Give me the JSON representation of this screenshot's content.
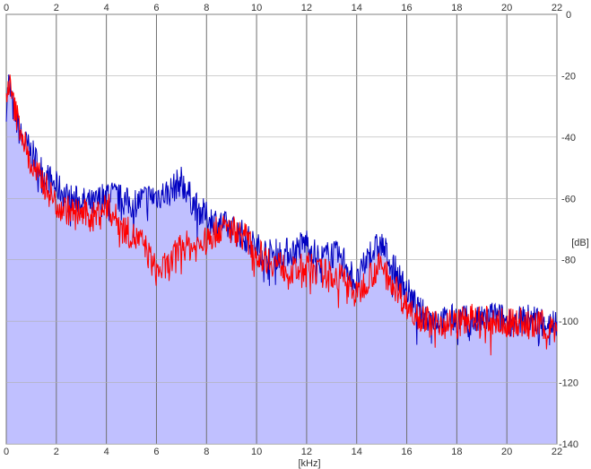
{
  "chart_data": {
    "type": "area",
    "xlabel": "[kHz]",
    "ylabel": "[dB]",
    "xlim": [
      0,
      22
    ],
    "ylim": [
      -140,
      0
    ],
    "x_ticks": [
      "0",
      "2",
      "4",
      "6",
      "8",
      "10",
      "12",
      "14",
      "16",
      "18",
      "20",
      "22"
    ],
    "y_ticks": [
      "0",
      "-20",
      "-40",
      "-60",
      "-80",
      "-100",
      "-120",
      "-140"
    ],
    "grid": true,
    "series": [
      {
        "color": "#0000c0",
        "x": [
          0,
          0.1,
          0.3,
          0.6,
          1,
          1.5,
          2,
          2.5,
          3,
          3.5,
          4,
          4.5,
          5,
          5.5,
          6,
          6.5,
          7,
          7.5,
          8,
          8.5,
          9,
          9.5,
          10,
          10.5,
          11,
          11.5,
          12,
          12.5,
          13,
          13.5,
          14,
          14.5,
          15,
          15.5,
          16,
          16.5,
          17,
          17.5,
          18,
          18.5,
          19,
          19.5,
          20,
          20.5,
          21,
          21.5,
          22
        ],
        "values": [
          -30,
          -22,
          -32,
          -40,
          -45,
          -52,
          -56,
          -60,
          -61,
          -62,
          -58,
          -60,
          -62,
          -60,
          -59,
          -58,
          -54,
          -62,
          -66,
          -68,
          -70,
          -72,
          -76,
          -78,
          -78,
          -77,
          -74,
          -80,
          -78,
          -80,
          -88,
          -78,
          -75,
          -83,
          -90,
          -97,
          -99,
          -100,
          -99,
          -100,
          -100,
          -98,
          -100,
          -100,
          -99,
          -100,
          -101
        ]
      },
      {
        "color": "#ff0000",
        "x": [
          0,
          0.1,
          0.3,
          0.6,
          1,
          1.5,
          2,
          2.5,
          3,
          3.5,
          4,
          4.5,
          5,
          5.5,
          6,
          6.5,
          7,
          7.5,
          8,
          8.5,
          9,
          9.5,
          10,
          10.5,
          11,
          11.5,
          12,
          12.5,
          13,
          13.5,
          14,
          14.5,
          15,
          15.5,
          16,
          16.5,
          17,
          17.5,
          18,
          18.5,
          19,
          19.5,
          20,
          20.5,
          21,
          21.5,
          22
        ],
        "values": [
          -28,
          -22,
          -30,
          -38,
          -50,
          -55,
          -62,
          -64,
          -65,
          -66,
          -62,
          -68,
          -72,
          -75,
          -84,
          -82,
          -75,
          -76,
          -74,
          -70,
          -70,
          -72,
          -78,
          -80,
          -82,
          -84,
          -82,
          -84,
          -85,
          -86,
          -92,
          -85,
          -82,
          -88,
          -95,
          -98,
          -101,
          -100,
          -101,
          -99,
          -100,
          -100,
          -101,
          -100,
          -102,
          -101,
          -103
        ]
      }
    ],
    "fill": {
      "color": "#c0c0ff",
      "baseline": -140
    }
  }
}
